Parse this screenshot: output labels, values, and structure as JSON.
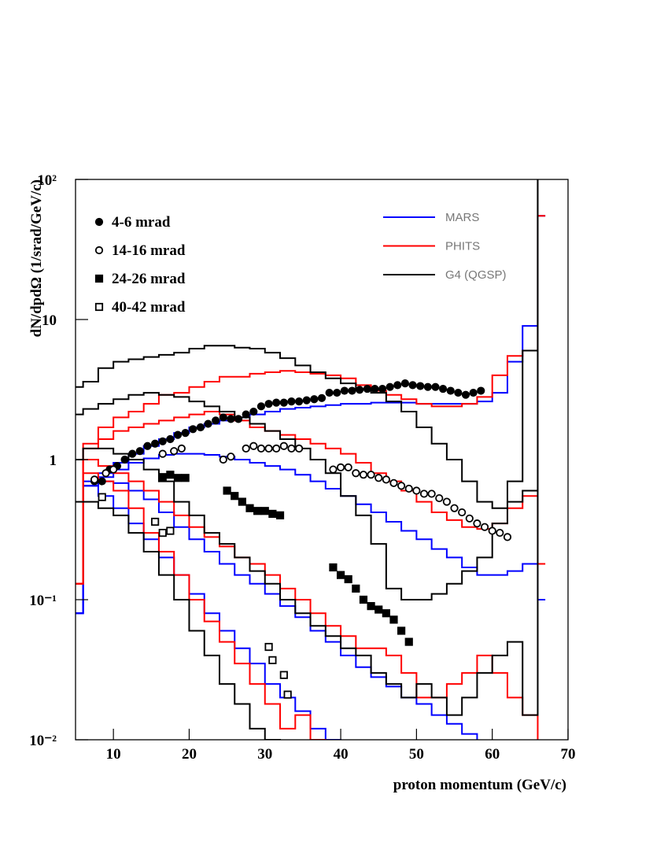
{
  "chart_data": {
    "type": "histogram",
    "xlabel": "proton momentum (GeV/c)",
    "ylabel": "dN/dpdΩ  (1/srad/GeV/c)",
    "xlim": [
      5,
      70
    ],
    "ylim": [
      0.01,
      100
    ],
    "log_y": true,
    "xticks": [
      10,
      20,
      30,
      40,
      50,
      60,
      70
    ],
    "yticks": [
      {
        "value": 0.01,
        "label": "10⁻²"
      },
      {
        "value": 0.1,
        "label": "10⁻¹"
      },
      1,
      10,
      {
        "value": 100,
        "label": "10²"
      }
    ],
    "bins": [
      5,
      6,
      8,
      10,
      12,
      14,
      16,
      18,
      20,
      22,
      24,
      26,
      28,
      30,
      32,
      34,
      36,
      38,
      40,
      42,
      44,
      46,
      48,
      50,
      52,
      54,
      56,
      58,
      60,
      62,
      64,
      66,
      67
    ],
    "models": [
      {
        "name": "MARS",
        "color": "#0000ff",
        "curves": [
          [
            0.08,
            0.7,
            0.8,
            0.95,
            1.1,
            1.25,
            1.4,
            1.55,
            1.7,
            1.8,
            1.9,
            2.0,
            2.1,
            2.2,
            2.3,
            2.35,
            2.4,
            2.45,
            2.5,
            2.5,
            2.55,
            2.55,
            2.55,
            2.5,
            2.5,
            2.5,
            2.5,
            2.6,
            3.0,
            5.0,
            9.0,
            55
          ],
          [
            0.08,
            0.65,
            0.75,
            0.85,
            0.95,
            1.02,
            1.08,
            1.1,
            1.1,
            1.08,
            1.05,
            1.0,
            0.95,
            0.9,
            0.85,
            0.78,
            0.7,
            0.62,
            0.55,
            0.48,
            0.42,
            0.36,
            0.31,
            0.27,
            0.23,
            0.2,
            0.17,
            0.15,
            0.15,
            0.16,
            0.18,
            0.1
          ],
          [
            0.08,
            0.65,
            0.7,
            0.68,
            0.6,
            0.52,
            0.42,
            0.33,
            0.27,
            0.22,
            0.18,
            0.15,
            0.13,
            0.11,
            0.09,
            0.075,
            0.06,
            0.05,
            0.04,
            0.033,
            0.028,
            0.024,
            0.02,
            0.018,
            0.015,
            0.013,
            0.011,
            0.009,
            0.008,
            0.008,
            0.008,
            0.008
          ],
          [
            0.08,
            0.65,
            0.55,
            0.45,
            0.35,
            0.27,
            0.2,
            0.15,
            0.11,
            0.08,
            0.06,
            0.045,
            0.035,
            0.025,
            0.02,
            0.016,
            0.012,
            0.01,
            0.008,
            0.005,
            0.005,
            0.005,
            0.005,
            0.005,
            0.005,
            0.005,
            0.005,
            0.005,
            0.005,
            0.005,
            0.005,
            0.005
          ]
        ]
      },
      {
        "name": "PHITS",
        "color": "#ff0000",
        "curves": [
          [
            0.13,
            1.3,
            1.7,
            2.0,
            2.2,
            2.5,
            2.9,
            3.0,
            3.3,
            3.6,
            3.9,
            3.9,
            4.1,
            4.2,
            4.3,
            4.2,
            4.1,
            4.0,
            3.8,
            3.4,
            3.1,
            2.9,
            2.7,
            2.5,
            2.4,
            2.4,
            2.5,
            2.8,
            4.0,
            5.5,
            6.0,
            55
          ],
          [
            0.13,
            1.2,
            1.4,
            1.6,
            1.7,
            1.8,
            1.9,
            2.0,
            2.1,
            2.2,
            2.1,
            1.9,
            1.7,
            1.6,
            1.5,
            1.4,
            1.3,
            1.2,
            1.1,
            0.95,
            0.8,
            0.7,
            0.6,
            0.5,
            0.42,
            0.37,
            0.33,
            0.32,
            0.35,
            0.45,
            0.55,
            0.18
          ],
          [
            0.13,
            1.0,
            0.9,
            0.8,
            0.7,
            0.6,
            0.5,
            0.4,
            0.33,
            0.28,
            0.24,
            0.2,
            0.18,
            0.15,
            0.12,
            0.1,
            0.08,
            0.065,
            0.055,
            0.045,
            0.045,
            0.04,
            0.03,
            0.02,
            0.02,
            0.025,
            0.03,
            0.04,
            0.03,
            0.02,
            0.015,
            0.008
          ],
          [
            0.13,
            0.8,
            0.7,
            0.6,
            0.45,
            0.3,
            0.22,
            0.15,
            0.1,
            0.07,
            0.05,
            0.035,
            0.025,
            0.018,
            0.012,
            0.015,
            0.01,
            0.008,
            0.005,
            0.005,
            0.005,
            0.005,
            0.005,
            0.005,
            0.005,
            0.005,
            0.005,
            0.005,
            0.005,
            0.005,
            0.005,
            0.005
          ]
        ]
      },
      {
        "name": "G4 (QGSP)",
        "color": "#000000",
        "curves": [
          [
            3.3,
            3.6,
            4.5,
            5.0,
            5.2,
            5.4,
            5.6,
            5.8,
            6.2,
            6.5,
            6.5,
            6.3,
            6.2,
            5.8,
            5.3,
            4.7,
            4.2,
            3.8,
            3.5,
            3.2,
            3.0,
            2.6,
            2.2,
            1.7,
            1.3,
            1.0,
            0.7,
            0.5,
            0.45,
            0.7,
            6.0,
            200
          ],
          [
            2.1,
            2.3,
            2.5,
            2.7,
            2.9,
            3.0,
            2.9,
            2.8,
            2.6,
            2.4,
            2.2,
            2.0,
            1.8,
            1.6,
            1.4,
            1.2,
            1.0,
            0.8,
            0.55,
            0.4,
            0.25,
            0.12,
            0.1,
            0.1,
            0.11,
            0.13,
            0.16,
            0.2,
            0.35,
            0.5,
            0.6,
            200
          ],
          [
            1.0,
            1.2,
            1.2,
            1.1,
            1.0,
            0.85,
            0.7,
            0.5,
            0.4,
            0.3,
            0.25,
            0.2,
            0.16,
            0.13,
            0.1,
            0.08,
            0.065,
            0.055,
            0.045,
            0.04,
            0.03,
            0.025,
            0.02,
            0.025,
            0.02,
            0.015,
            0.02,
            0.03,
            0.04,
            0.05,
            0.015,
            200
          ],
          [
            0.5,
            0.5,
            0.45,
            0.4,
            0.3,
            0.22,
            0.15,
            0.1,
            0.06,
            0.04,
            0.025,
            0.018,
            0.012,
            0.01,
            0.005,
            0.005,
            0.005,
            0.005,
            0.005,
            0.005,
            0.005,
            0.005,
            0.005,
            0.005,
            0.005,
            0.005,
            0.005,
            0.005,
            0.005,
            0.005,
            0.005,
            0.005
          ]
        ]
      }
    ],
    "measurements": [
      {
        "name": "4-6 mrad",
        "marker": "circle",
        "filled": true,
        "x": [
          7.5,
          8.5,
          9.5,
          10.5,
          11.5,
          12.5,
          13.5,
          14.5,
          15.5,
          16.5,
          17.5,
          18.5,
          19.5,
          20.5,
          21.5,
          22.5,
          23.5,
          24.5,
          25.5,
          26.5,
          27.5,
          28.5,
          29.5,
          30.5,
          31.5,
          32.5,
          33.5,
          34.5,
          35.5,
          36.5,
          37.5,
          38.5,
          39.5,
          40.5,
          41.5,
          42.5,
          43.5,
          44.5,
          45.5,
          46.5,
          47.5,
          48.5,
          49.5,
          50.5,
          51.5,
          52.5,
          53.5,
          54.5,
          55.5,
          56.5,
          57.5,
          58.5
        ],
        "values": [
          0.7,
          0.7,
          0.85,
          0.9,
          1.0,
          1.1,
          1.15,
          1.25,
          1.3,
          1.35,
          1.4,
          1.5,
          1.55,
          1.65,
          1.7,
          1.8,
          1.9,
          2.0,
          1.95,
          1.95,
          2.1,
          2.2,
          2.4,
          2.5,
          2.55,
          2.55,
          2.6,
          2.6,
          2.65,
          2.7,
          2.75,
          3.0,
          3.0,
          3.1,
          3.1,
          3.15,
          3.2,
          3.2,
          3.2,
          3.3,
          3.4,
          3.5,
          3.4,
          3.35,
          3.3,
          3.3,
          3.2,
          3.1,
          3.0,
          2.9,
          3.0,
          3.1
        ]
      },
      {
        "name": "14-16 mrad",
        "marker": "circle",
        "filled": false,
        "x": [
          7.5,
          9,
          10,
          16.5,
          18,
          19,
          24.5,
          25.5,
          27.5,
          28.5,
          29.5,
          30.5,
          31.5,
          32.5,
          33.5,
          34.5,
          39,
          40,
          41,
          42,
          43,
          44,
          45,
          46,
          47,
          48,
          49,
          50,
          51,
          52,
          53,
          54,
          55,
          56,
          57,
          58,
          59,
          60,
          61,
          62
        ],
        "values": [
          0.72,
          0.8,
          0.85,
          1.1,
          1.15,
          1.2,
          1.0,
          1.05,
          1.2,
          1.25,
          1.2,
          1.2,
          1.2,
          1.25,
          1.2,
          1.2,
          0.85,
          0.88,
          0.88,
          0.8,
          0.78,
          0.78,
          0.74,
          0.72,
          0.68,
          0.65,
          0.62,
          0.6,
          0.57,
          0.57,
          0.53,
          0.5,
          0.45,
          0.42,
          0.38,
          0.35,
          0.33,
          0.31,
          0.3,
          0.28
        ]
      },
      {
        "name": "24-26 mrad",
        "marker": "square",
        "filled": true,
        "x": [
          16.5,
          17.5,
          18.5,
          19.5,
          25,
          26,
          27,
          28,
          29,
          30,
          31,
          32,
          39,
          40,
          41,
          42,
          43,
          44,
          45,
          46,
          47,
          48,
          49
        ],
        "values": [
          0.75,
          0.78,
          0.74,
          0.74,
          0.6,
          0.55,
          0.5,
          0.45,
          0.43,
          0.43,
          0.41,
          0.4,
          0.17,
          0.15,
          0.14,
          0.12,
          0.1,
          0.09,
          0.085,
          0.08,
          0.072,
          0.06,
          0.05
        ]
      },
      {
        "name": "40-42 mrad",
        "marker": "square",
        "filled": false,
        "x": [
          8.5,
          15.5,
          16.5,
          17.5,
          30.5,
          31,
          32.5,
          33
        ],
        "values": [
          0.54,
          0.36,
          0.3,
          0.31,
          0.046,
          0.037,
          0.029,
          0.021
        ]
      }
    ]
  }
}
